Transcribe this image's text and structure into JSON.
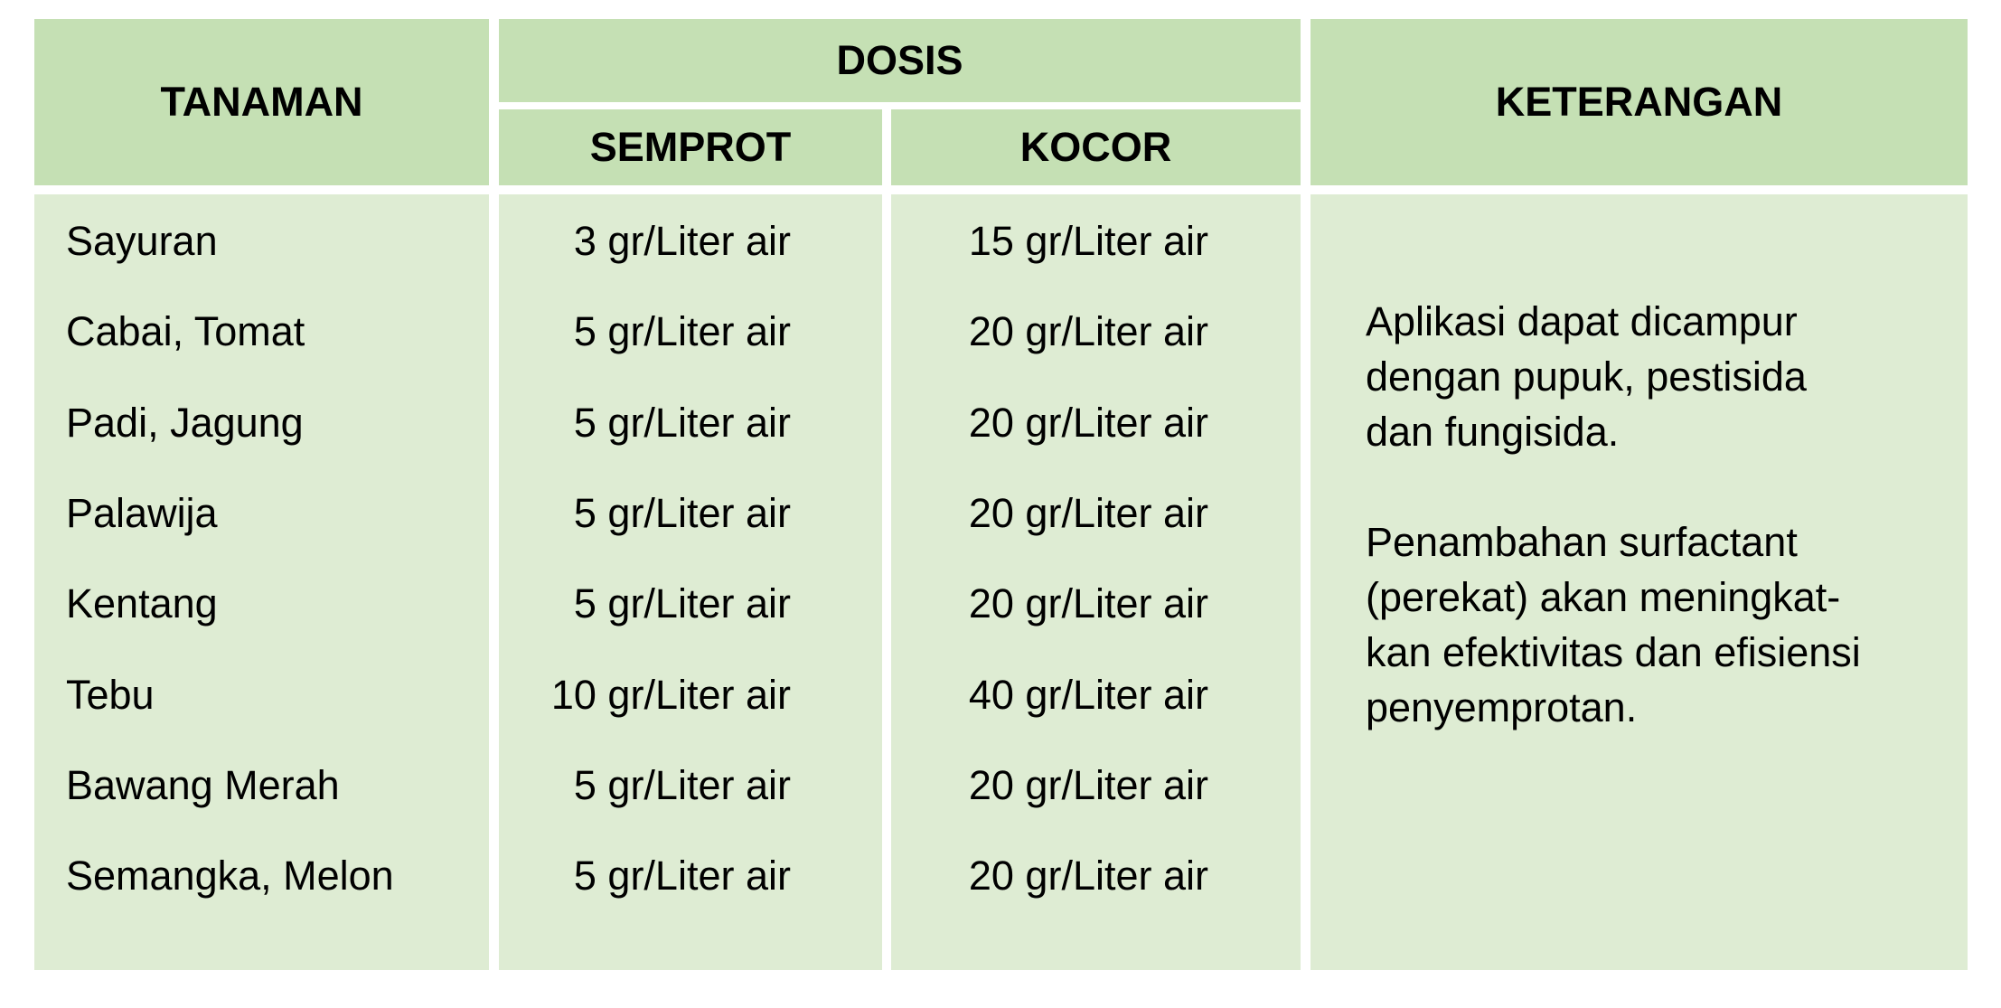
{
  "header": {
    "tanaman": "TANAMAN",
    "dosis": "DOSIS",
    "semprot": "SEMPROT",
    "kocor": "KOCOR",
    "keterangan": "KETERANGAN"
  },
  "rows": [
    {
      "tanaman": "Sayuran",
      "semprot": "3 gr/Liter air",
      "kocor": "15 gr/Liter air"
    },
    {
      "tanaman": "Cabai, Tomat",
      "semprot": "5 gr/Liter air",
      "kocor": "20 gr/Liter air"
    },
    {
      "tanaman": "Padi, Jagung",
      "semprot": "5 gr/Liter air",
      "kocor": "20 gr/Liter air"
    },
    {
      "tanaman": "Palawija",
      "semprot": "5 gr/Liter air",
      "kocor": "20 gr/Liter air"
    },
    {
      "tanaman": "Kentang",
      "semprot": "5 gr/Liter air",
      "kocor": "20 gr/Liter air"
    },
    {
      "tanaman": "Tebu",
      "semprot": "10 gr/Liter air",
      "kocor": "40 gr/Liter air"
    },
    {
      "tanaman": "Bawang Merah",
      "semprot": "5 gr/Liter air",
      "kocor": "20 gr/Liter air"
    },
    {
      "tanaman": "Semangka, Melon",
      "semprot": "5 gr/Liter air",
      "kocor": "20 gr/Liter air"
    }
  ],
  "keterangan": {
    "p1": [
      "Aplikasi dapat dicampur",
      "dengan pupuk, pestisida",
      "dan fungisida."
    ],
    "p2": [
      "Penambahan surfactant",
      "(perekat) akan meningkat-",
      "kan efektivitas dan efisiensi",
      "penyemprotan."
    ]
  },
  "colors": {
    "header_bg": "#c5e0b4",
    "body_bg": "#deecd3"
  }
}
